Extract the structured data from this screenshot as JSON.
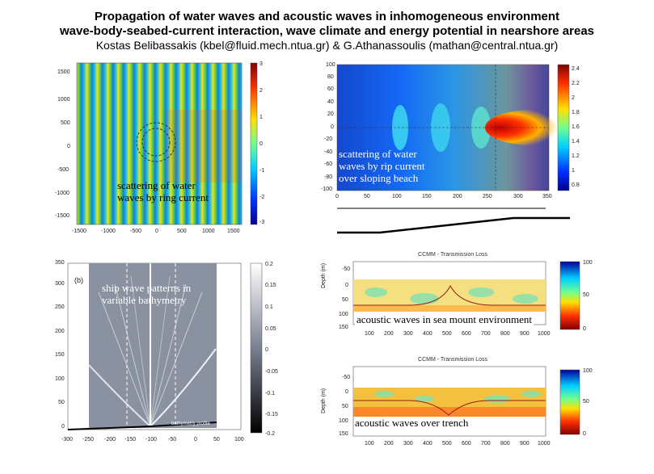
{
  "header": {
    "title_line1": "Propagation of water waves  and  acoustic waves in inhomogeneous environment",
    "title_line2": "wave-body-seabed-current interaction, wave climate and energy potential in nearshore areas",
    "authors": "Kostas Belibassakis (kbel@fluid.mech.ntua.gr) & G.Athanassoulis (mathan@central.ntua.gr)"
  },
  "panel_ring": {
    "caption_line1": "scattering of water",
    "caption_line2": "waves by ring current",
    "y_ticks": [
      "1500",
      "1000",
      "500",
      "0",
      "-500",
      "-1000",
      "-1500"
    ],
    "x_ticks": [
      "-1500",
      "-1000",
      "-500",
      "0",
      "500",
      "1000",
      "1500"
    ],
    "colorbar_ticks": [
      "3",
      "2",
      "1",
      "0",
      "-1",
      "-2",
      "-3"
    ]
  },
  "panel_rip": {
    "caption_line1": "scattering of water",
    "caption_line2": "waves by rip current",
    "caption_line3": "over sloping beach",
    "y_ticks": [
      "100",
      "80",
      "60",
      "40",
      "20",
      "0",
      "-20",
      "-40",
      "-60",
      "-80",
      "-100"
    ],
    "x_ticks": [
      "0",
      "50",
      "100",
      "150",
      "200",
      "250",
      "300",
      "350"
    ],
    "colorbar_ticks": [
      "2.4",
      "2.2",
      "2",
      "1.8",
      "1.6",
      "1.4",
      "1.2",
      "1",
      "0.8"
    ]
  },
  "panel_ship": {
    "label": "(b)",
    "caption_line1": "ship wave patterns in",
    "caption_line2": "variable bathymetry",
    "bottom_label": "bathymetry profile",
    "y_ticks": [
      "350",
      "300",
      "250",
      "200",
      "150",
      "100",
      "50",
      "0"
    ],
    "x_ticks": [
      "-300",
      "-250",
      "-200",
      "-150",
      "-100",
      "-50",
      "0",
      "50",
      "100"
    ],
    "colorbar_ticks": [
      "0.2",
      "0.15",
      "0.1",
      "0.05",
      "0",
      "-0.05",
      "-0.1",
      "-0.15",
      "-0.2"
    ]
  },
  "panel_seamount": {
    "title": "CCMM - Transmission Loss",
    "caption": "acoustic waves in sea mount environment",
    "ylabel": "Depth (m)",
    "y_ticks": [
      "-50",
      "0",
      "50",
      "100",
      "150"
    ],
    "x_ticks": [
      "100",
      "200",
      "300",
      "400",
      "500",
      "600",
      "700",
      "800",
      "900",
      "1000"
    ],
    "colorbar_ticks": [
      "100",
      "50",
      "0"
    ]
  },
  "panel_trench": {
    "title": "CCMM - Transmission Loss",
    "caption": "acoustic waves over trench",
    "ylabel": "Depth (m)",
    "y_ticks": [
      "-50",
      "0",
      "50",
      "100",
      "150"
    ],
    "x_ticks": [
      "100",
      "200",
      "300",
      "400",
      "500",
      "600",
      "700",
      "800",
      "900",
      "1000"
    ],
    "colorbar_ticks": [
      "100",
      "50",
      "0"
    ]
  }
}
